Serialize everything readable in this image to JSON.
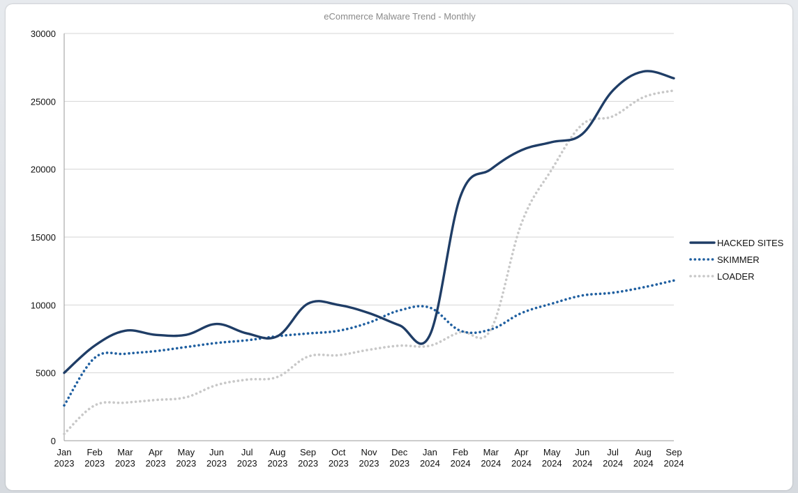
{
  "chart_data": {
    "type": "line",
    "title": "eCommerce Malware Trend - Monthly",
    "xlabel": "",
    "ylabel": "",
    "ylim": [
      0,
      30000
    ],
    "yticks": [
      "30000",
      "25000",
      "20000",
      "15000",
      "10000",
      "5000",
      "0"
    ],
    "categories": [
      [
        "Jan",
        "2023"
      ],
      [
        "Feb",
        "2023"
      ],
      [
        "Mar",
        "2023"
      ],
      [
        "Apr",
        "2023"
      ],
      [
        "May",
        "2023"
      ],
      [
        "Jun",
        "2023"
      ],
      [
        "Jul",
        "2023"
      ],
      [
        "Aug",
        "2023"
      ],
      [
        "Sep",
        "2023"
      ],
      [
        "Oct",
        "2023"
      ],
      [
        "Nov",
        "2023"
      ],
      [
        "Dec",
        "2023"
      ],
      [
        "Jan",
        "2024"
      ],
      [
        "Feb",
        "2024"
      ],
      [
        "Mar",
        "2024"
      ],
      [
        "Apr",
        "2024"
      ],
      [
        "May",
        "2024"
      ],
      [
        "Jun",
        "2024"
      ],
      [
        "Jul",
        "2024"
      ],
      [
        "Aug",
        "2024"
      ],
      [
        "Sep",
        "2024"
      ]
    ],
    "grid": true,
    "legend": "right",
    "series": [
      {
        "name": "HACKED SITES",
        "style": "solid",
        "color": "#1f3d66",
        "values": [
          5000,
          7000,
          8100,
          7800,
          7800,
          8600,
          7900,
          7700,
          10100,
          10000,
          9400,
          8500,
          7800,
          18000,
          20000,
          21400,
          22000,
          22600,
          25800,
          27200,
          26700
        ]
      },
      {
        "name": "SKIMMER",
        "style": "dotted",
        "color": "#1f5fa0",
        "values": [
          2600,
          6100,
          6400,
          6600,
          6900,
          7200,
          7400,
          7700,
          7900,
          8100,
          8700,
          9600,
          9800,
          8100,
          8200,
          9400,
          10100,
          10700,
          10900,
          11300,
          11800
        ]
      },
      {
        "name": "LOADER",
        "style": "dotted",
        "color": "#c8c8c8",
        "values": [
          500,
          2600,
          2800,
          3000,
          3200,
          4100,
          4500,
          4700,
          6200,
          6300,
          6700,
          7000,
          7000,
          8000,
          8200,
          16000,
          20000,
          23300,
          23900,
          25300,
          25800
        ]
      }
    ]
  }
}
